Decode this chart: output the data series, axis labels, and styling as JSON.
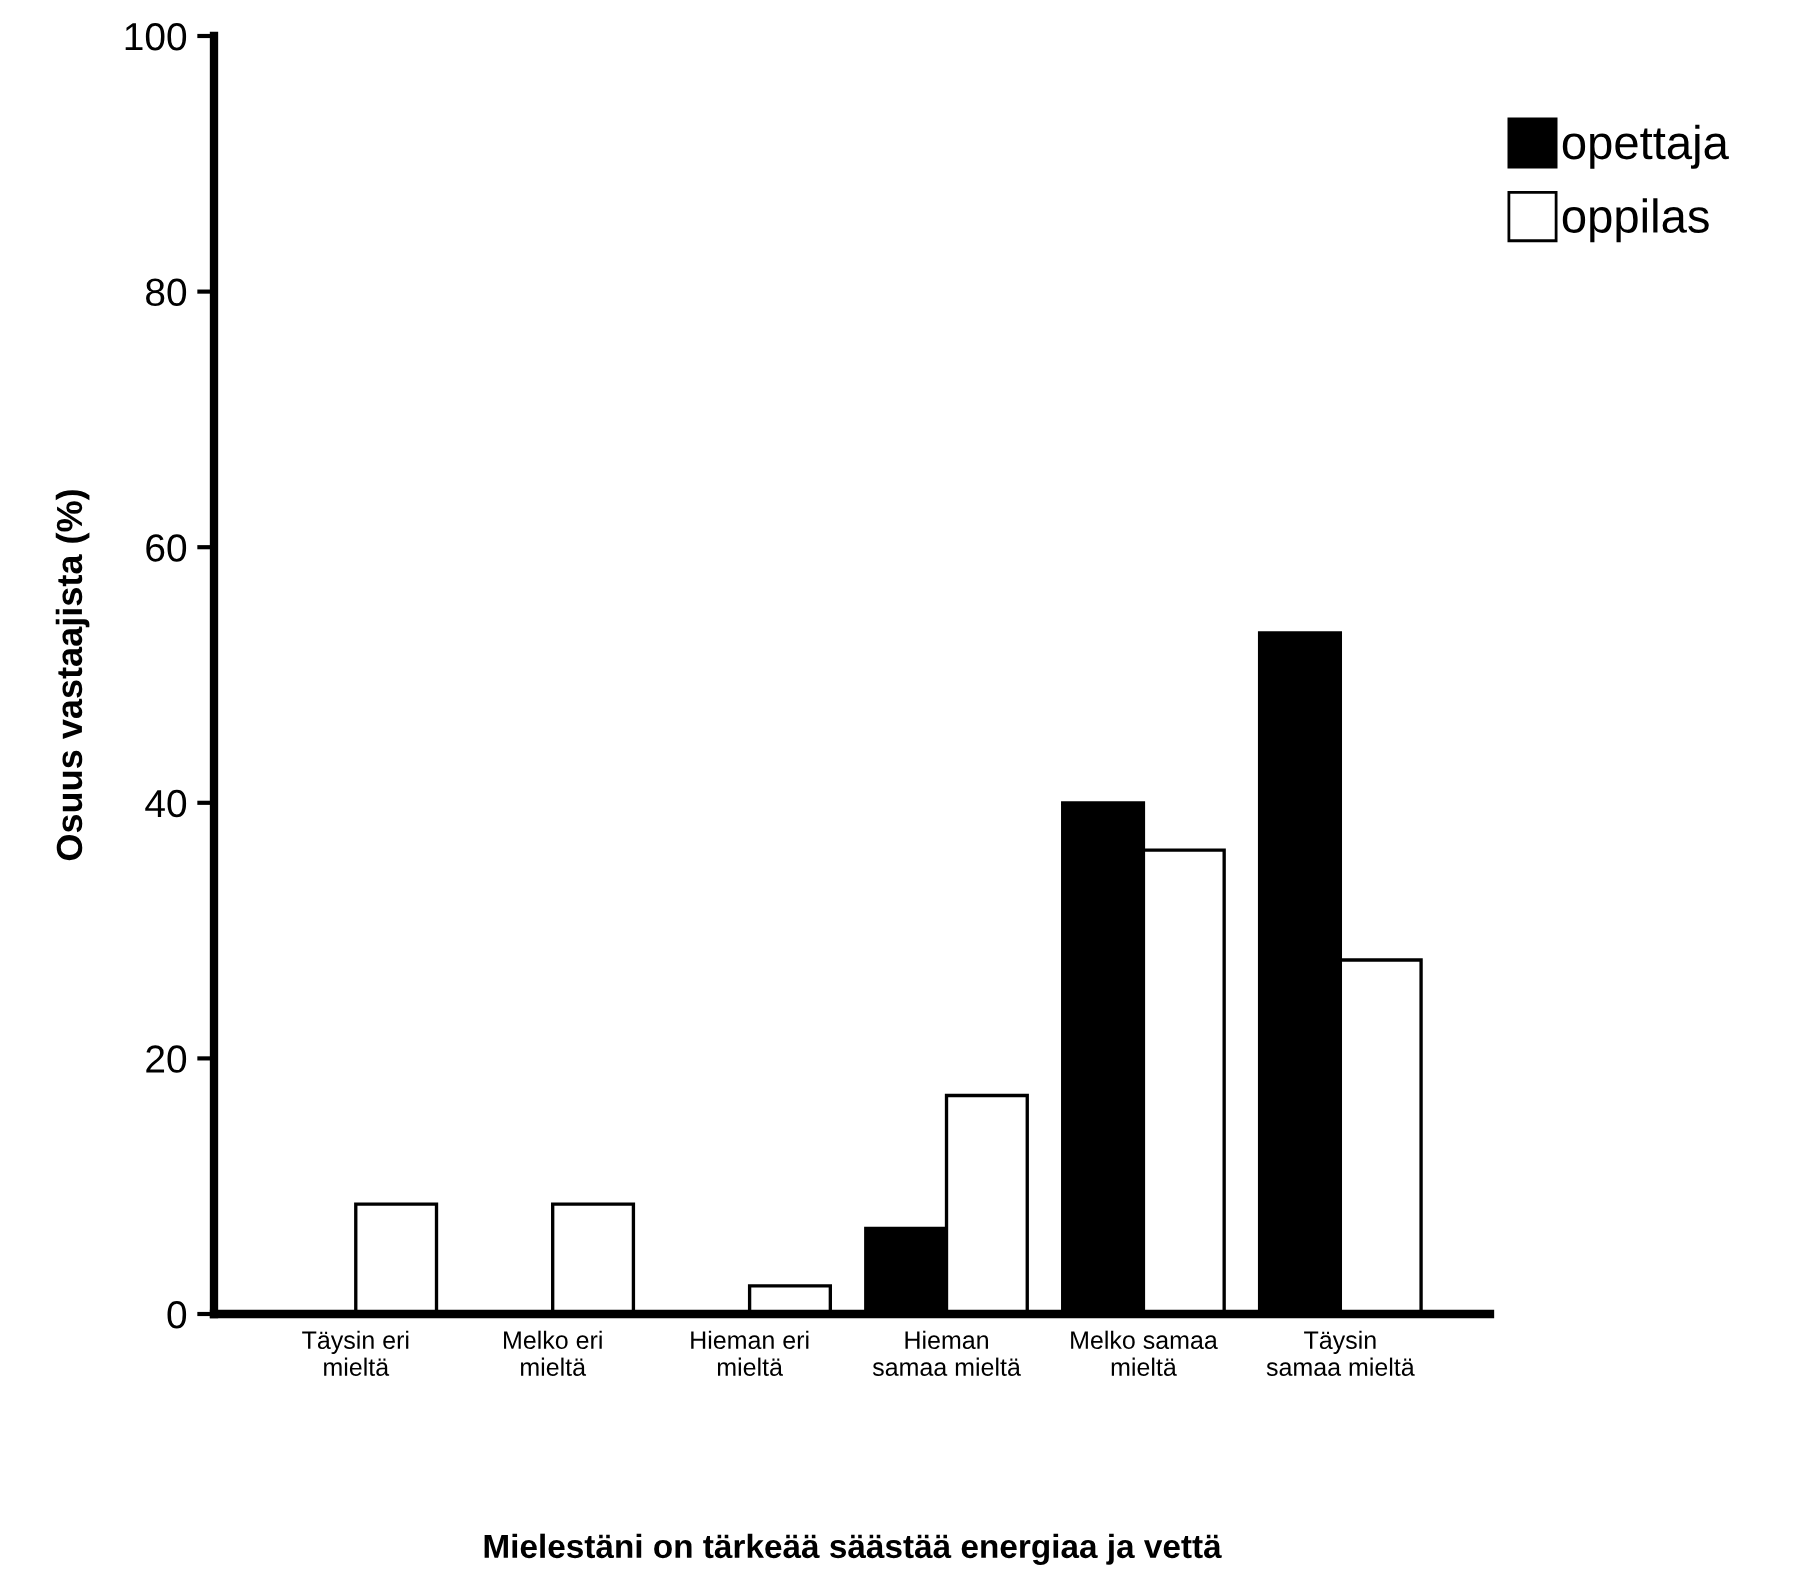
{
  "chart_data": {
    "type": "bar",
    "xlabel": "Mielestäni on tärkeää säästää energiaa ja vettä",
    "ylabel": "Osuus vastaajista (%)",
    "categories": [
      "Täysin eri\nmieltä",
      "Melko eri\nmieltä",
      "Hieman eri\nmieltä",
      "Hieman\nsamaa mieltä",
      "Melko samaa\nmieltä",
      "Täysin\nsamaa mieltä"
    ],
    "series": [
      {
        "name": "opettaja",
        "color": "#000000",
        "values": [
          0,
          0,
          0,
          6.7,
          40.0,
          53.3
        ]
      },
      {
        "name": "oppilas",
        "color": "#ffffff",
        "values": [
          8.6,
          8.6,
          2.2,
          17.1,
          36.3,
          27.7
        ]
      }
    ],
    "ylim": [
      0,
      100
    ],
    "yticks": [
      0,
      20,
      40,
      60,
      80,
      100
    ],
    "grid": false,
    "legend": "top right"
  }
}
